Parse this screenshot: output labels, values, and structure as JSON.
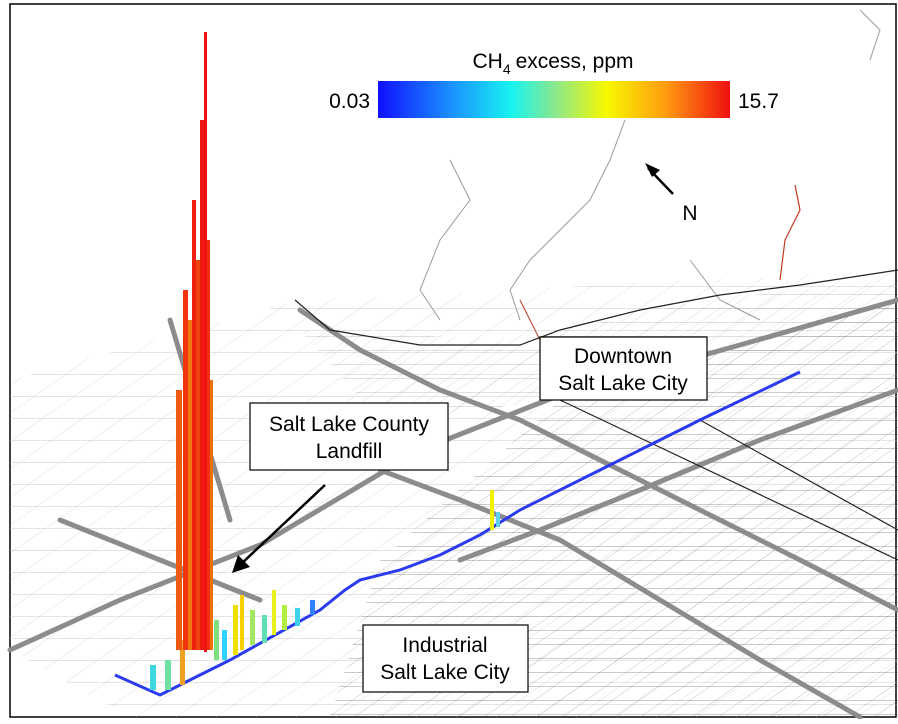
{
  "colorbar": {
    "title_main": "CH",
    "title_sub": "4",
    "title_rest": "excess, ppm",
    "min_label": "0.03",
    "max_label": "15.7"
  },
  "compass": {
    "label": "N"
  },
  "labels": {
    "landfill": {
      "lines": [
        "Salt Lake County",
        "Landfill"
      ]
    },
    "downtown": {
      "lines": [
        "Downtown",
        "Salt Lake City"
      ]
    },
    "industrial": {
      "lines": [
        "Industrial",
        "Salt Lake City"
      ]
    }
  }
}
